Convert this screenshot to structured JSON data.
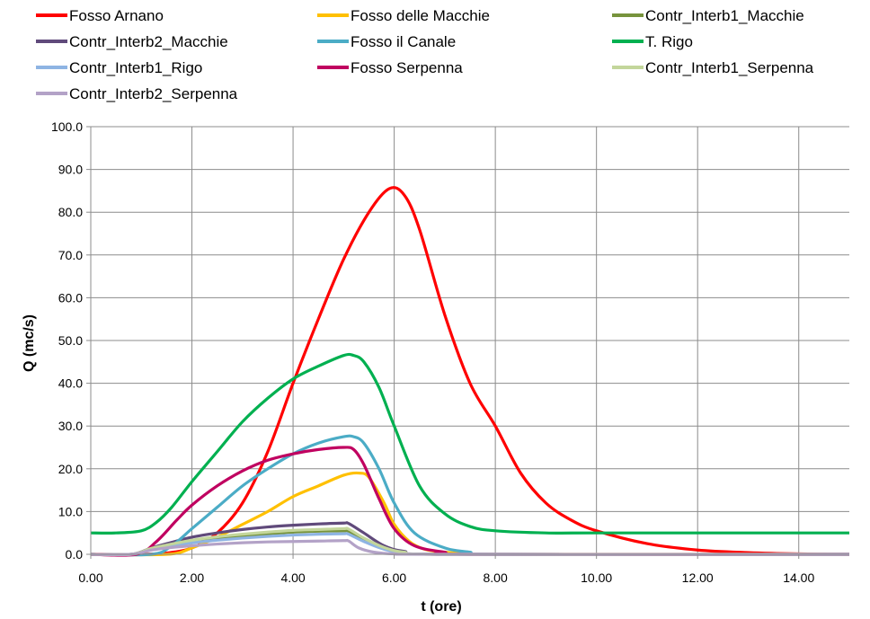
{
  "chart_data": {
    "type": "line",
    "xlabel": "t (ore)",
    "ylabel": "Q (mc/s)",
    "xlim": [
      0,
      15
    ],
    "ylim": [
      0,
      100
    ],
    "x_ticks": [
      "0.00",
      "2.00",
      "4.00",
      "6.00",
      "8.00",
      "10.00",
      "12.00",
      "14.00"
    ],
    "y_ticks": [
      "0.0",
      "10.0",
      "20.0",
      "30.0",
      "40.0",
      "50.0",
      "60.0",
      "70.0",
      "80.0",
      "90.0",
      "100.0"
    ],
    "grid": true,
    "legend_position": "top",
    "series": [
      {
        "name": "Fosso Arnano",
        "color": "#ff0000",
        "x": [
          0,
          1.0,
          1.5,
          2.0,
          2.5,
          3.0,
          3.5,
          4.0,
          4.5,
          5.0,
          5.5,
          5.9,
          6.2,
          6.5,
          7.0,
          7.5,
          8.0,
          8.5,
          9.0,
          9.5,
          10.0,
          11.0,
          12.0,
          13.0,
          14.0,
          15.0
        ],
        "y": [
          0,
          0,
          0.3,
          1.5,
          5,
          12,
          24,
          40,
          55,
          69,
          80,
          85.5,
          84,
          76,
          56,
          40,
          30,
          19,
          12,
          8,
          5.5,
          2.5,
          1,
          0.4,
          0.1,
          0
        ]
      },
      {
        "name": "Fosso delle Macchie",
        "color": "#ffc000",
        "x": [
          0,
          1.5,
          2.0,
          2.5,
          3.0,
          3.5,
          4.0,
          4.5,
          5.0,
          5.3,
          5.5,
          5.8,
          6.0,
          6.3,
          6.6,
          7.0,
          7.5,
          8.0,
          15.0
        ],
        "y": [
          0,
          0,
          1.5,
          4,
          7,
          10,
          13.5,
          16,
          18.5,
          19,
          18,
          12,
          7,
          3,
          1.2,
          0.5,
          0.1,
          0,
          0
        ]
      },
      {
        "name": "Contr_Interb1_Macchie",
        "color": "#77933c",
        "x": [
          0,
          0.8,
          1.2,
          1.6,
          2.0,
          2.5,
          3.0,
          3.5,
          4.0,
          4.5,
          5.0,
          5.1,
          5.4,
          5.8,
          6.2,
          7.0,
          15.0
        ],
        "y": [
          0,
          0,
          1.3,
          2.2,
          3,
          3.8,
          4.3,
          4.8,
          5.2,
          5.4,
          5.5,
          5.4,
          3.5,
          1.5,
          0.5,
          0,
          0
        ]
      },
      {
        "name": "Contr_Interb2_Macchie",
        "color": "#604a7b",
        "x": [
          0,
          0.8,
          1.2,
          1.6,
          2.0,
          2.5,
          3.0,
          3.5,
          4.0,
          4.5,
          5.0,
          5.1,
          5.4,
          5.8,
          6.2,
          7.0,
          15.0
        ],
        "y": [
          0,
          0,
          1.5,
          2.8,
          4,
          5,
          5.8,
          6.4,
          6.8,
          7.1,
          7.3,
          7.2,
          5,
          2,
          0.7,
          0,
          0
        ]
      },
      {
        "name": "Fosso il Canale",
        "color": "#4bacc6",
        "x": [
          0,
          1.2,
          1.6,
          2.0,
          2.5,
          3.0,
          3.5,
          4.0,
          4.5,
          5.0,
          5.2,
          5.4,
          5.7,
          6.0,
          6.4,
          7.0,
          7.5,
          8.0,
          15.0
        ],
        "y": [
          0,
          0,
          2,
          6,
          11,
          16,
          20,
          23.5,
          26,
          27.5,
          27.5,
          26,
          20,
          12,
          5,
          1.5,
          0.5,
          0,
          0
        ]
      },
      {
        "name": "T. Rigo",
        "color": "#00b050",
        "x": [
          0,
          0.5,
          1.0,
          1.3,
          1.6,
          2.0,
          2.5,
          3.0,
          3.5,
          4.0,
          4.5,
          5.0,
          5.2,
          5.4,
          5.7,
          6.0,
          6.5,
          7.0,
          7.5,
          8.0,
          9.0,
          10.0,
          15.0
        ],
        "y": [
          5,
          5,
          5.5,
          7.5,
          11,
          17,
          24,
          31,
          36.5,
          41,
          44,
          46.5,
          46.5,
          45,
          39,
          30,
          16,
          9.5,
          6.5,
          5.5,
          5,
          5,
          5
        ]
      },
      {
        "name": "Contr_Interb1_Rigo",
        "color": "#8eb4e3",
        "x": [
          0,
          0.8,
          1.2,
          1.6,
          2.0,
          2.5,
          3.0,
          3.5,
          4.0,
          4.5,
          5.0,
          5.1,
          5.4,
          5.8,
          6.2,
          7.0,
          15.0
        ],
        "y": [
          0,
          0,
          1.2,
          2,
          2.7,
          3.3,
          3.8,
          4.2,
          4.5,
          4.7,
          4.8,
          4.7,
          3,
          1.2,
          0.4,
          0,
          0
        ]
      },
      {
        "name": "Fosso Serpenna",
        "color": "#c00060",
        "x": [
          0,
          0.9,
          1.3,
          1.7,
          2.0,
          2.5,
          3.0,
          3.5,
          4.0,
          4.5,
          5.0,
          5.2,
          5.4,
          5.7,
          6.0,
          6.4,
          7.0,
          7.5,
          15.0
        ],
        "y": [
          0,
          0,
          3,
          8,
          11.5,
          16,
          19.5,
          22,
          23.5,
          24.5,
          25,
          24.5,
          21,
          13,
          6,
          2,
          0.5,
          0,
          0
        ]
      },
      {
        "name": "Contr_Interb1_Serpenna",
        "color": "#c3d69b",
        "x": [
          0,
          0.8,
          1.2,
          1.6,
          2.0,
          2.5,
          3.0,
          3.5,
          4.0,
          4.5,
          5.0,
          5.1,
          5.4,
          5.8,
          6.2,
          7.0,
          15.0
        ],
        "y": [
          0,
          0,
          1.4,
          2.4,
          3.3,
          4.1,
          4.7,
          5.2,
          5.6,
          5.8,
          6,
          5.9,
          3.8,
          1.6,
          0.5,
          0,
          0
        ]
      },
      {
        "name": "Contr_Interb2_Serpenna",
        "color": "#b3a2c7",
        "x": [
          0,
          0.8,
          1.2,
          1.6,
          2.0,
          2.5,
          3.0,
          3.5,
          4.0,
          4.5,
          5.0,
          5.1,
          5.3,
          5.6,
          6.0,
          7.0,
          15.0
        ],
        "y": [
          0,
          0,
          1,
          1.6,
          2,
          2.4,
          2.7,
          2.9,
          3.0,
          3.1,
          3.2,
          3.1,
          1.5,
          0.5,
          0.1,
          0,
          0
        ]
      }
    ]
  }
}
